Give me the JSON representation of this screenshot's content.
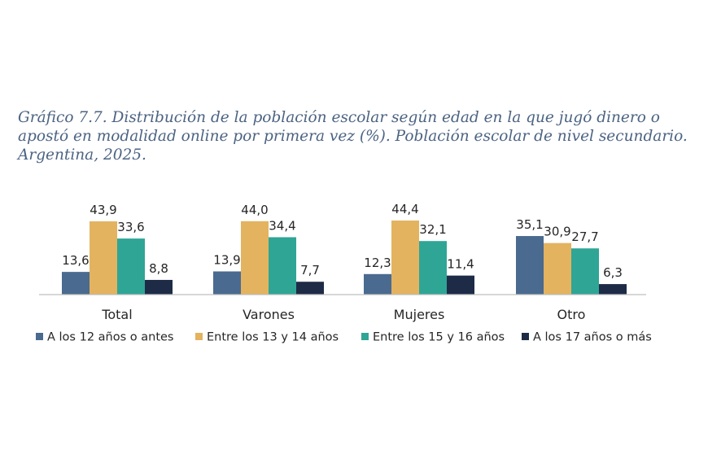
{
  "chart_data": {
    "type": "bar",
    "title": "Gráfico 7.7. Distribución de la población escolar según edad en la que jugó dinero o apostó en modalidad online por primera vez (%). Población escolar de nivel secundario. Argentina, 2025.",
    "categories": [
      "Total",
      "Varones",
      "Mujeres",
      "Otro"
    ],
    "series": [
      {
        "name": "A los 12 años o antes",
        "color": "#4a6a8f",
        "values": [
          13.6,
          13.9,
          12.3,
          35.1
        ],
        "labels": [
          "13,6",
          "13,9",
          "12,3",
          "35,1"
        ]
      },
      {
        "name": "Entre los 13  y 14 años",
        "color": "#e3b35f",
        "values": [
          43.9,
          44.0,
          44.4,
          30.9
        ],
        "labels": [
          "43,9",
          "44,0",
          "44,4",
          "30,9"
        ]
      },
      {
        "name": "Entre los 15 y 16 años",
        "color": "#2fa596",
        "values": [
          33.6,
          34.4,
          32.1,
          27.7
        ],
        "labels": [
          "33,6",
          "34,4",
          "32,1",
          "27,7"
        ]
      },
      {
        "name": "A los 17 años o más",
        "color": "#1d2b47",
        "values": [
          8.8,
          7.7,
          11.4,
          6.3
        ],
        "labels": [
          "8,8",
          "7,7",
          "11,4",
          "6,3"
        ]
      }
    ],
    "xlabel": "",
    "ylabel": "",
    "ylim": [
      0,
      50
    ],
    "grid": false,
    "legend": "bottom"
  }
}
